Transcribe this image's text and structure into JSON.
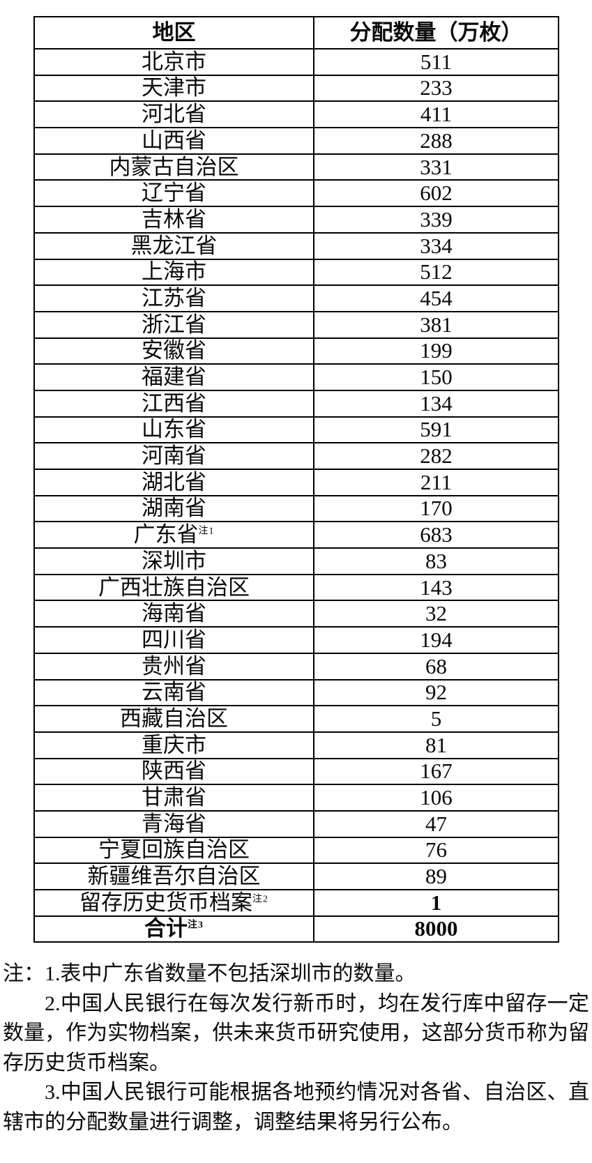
{
  "colors": {
    "background": "#ffffff",
    "text": "#0a0a0a",
    "border": "#000000"
  },
  "table": {
    "header": [
      "地区",
      "分配数量（万枚）"
    ],
    "rows": [
      {
        "region": "北京市",
        "value": "511"
      },
      {
        "region": "天津市",
        "value": "233"
      },
      {
        "region": "河北省",
        "value": "411"
      },
      {
        "region": "山西省",
        "value": "288"
      },
      {
        "region": "内蒙古自治区",
        "value": "331"
      },
      {
        "region": "辽宁省",
        "value": "602"
      },
      {
        "region": "吉林省",
        "value": "339"
      },
      {
        "region": "黑龙江省",
        "value": "334"
      },
      {
        "region": "上海市",
        "value": "512"
      },
      {
        "region": "江苏省",
        "value": "454"
      },
      {
        "region": "浙江省",
        "value": "381"
      },
      {
        "region": "安徽省",
        "value": "199"
      },
      {
        "region": "福建省",
        "value": "150"
      },
      {
        "region": "江西省",
        "value": "134"
      },
      {
        "region": "山东省",
        "value": "591"
      },
      {
        "region": "河南省",
        "value": "282"
      },
      {
        "region": "湖北省",
        "value": "211"
      },
      {
        "region": "湖南省",
        "value": "170"
      },
      {
        "region": "广东省",
        "sup": "注1",
        "value": "683"
      },
      {
        "region": "深圳市",
        "value": "83"
      },
      {
        "region": "广西壮族自治区",
        "value": "143"
      },
      {
        "region": "海南省",
        "value": "32"
      },
      {
        "region": "四川省",
        "value": "194"
      },
      {
        "region": "贵州省",
        "value": "68"
      },
      {
        "region": "云南省",
        "value": "92"
      },
      {
        "region": "西藏自治区",
        "value": "5"
      },
      {
        "region": "重庆市",
        "value": "81"
      },
      {
        "region": "陕西省",
        "value": "167"
      },
      {
        "region": "甘肃省",
        "value": "106"
      },
      {
        "region": "青海省",
        "value": "47"
      },
      {
        "region": "宁夏回族自治区",
        "value": "76"
      },
      {
        "region": "新疆维吾尔自治区",
        "value": "89"
      },
      {
        "region": "留存历史货币档案",
        "sup": "注2",
        "value": "1",
        "value_bold": true
      },
      {
        "region": "合计",
        "sup": "注3",
        "value": "8000",
        "bold": true
      }
    ]
  },
  "notes": {
    "paragraphs": [
      {
        "text": "注：1.表中广东省数量不包括深圳市的数量。",
        "indent": false
      },
      {
        "text": "2.中国人民银行在每次发行新币时，均在发行库中留存一定数量，作为实物档案，供未来货币研究使用，这部分货币称为留存历史货币档案。",
        "indent": true
      },
      {
        "text": "3.中国人民银行可能根据各地预约情况对各省、自治区、直辖市的分配数量进行调整，调整结果将另行公布。",
        "indent": true
      }
    ]
  }
}
